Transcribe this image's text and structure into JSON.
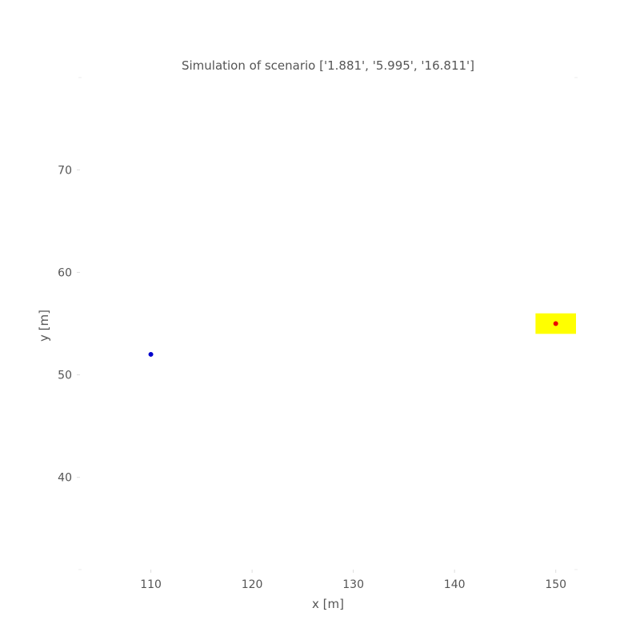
{
  "chart_data": {
    "type": "scatter",
    "title": "Simulation of scenario ['1.881', '5.995', '16.811']",
    "xlabel": "x [m]",
    "ylabel": "y [m]",
    "xlim": [
      103,
      152
    ],
    "ylim": [
      31,
      79
    ],
    "xticks": [
      110,
      120,
      130,
      140,
      150
    ],
    "yticks": [
      40,
      50,
      60,
      70
    ],
    "grid": false,
    "points": [
      {
        "x": 110,
        "y": 52,
        "color": "#0000cc"
      },
      {
        "x": 150,
        "y": 55,
        "color": "#ee0000"
      }
    ],
    "target_zone": {
      "x": [
        148,
        152
      ],
      "y": [
        54,
        56
      ],
      "color": "#ffff00"
    }
  }
}
